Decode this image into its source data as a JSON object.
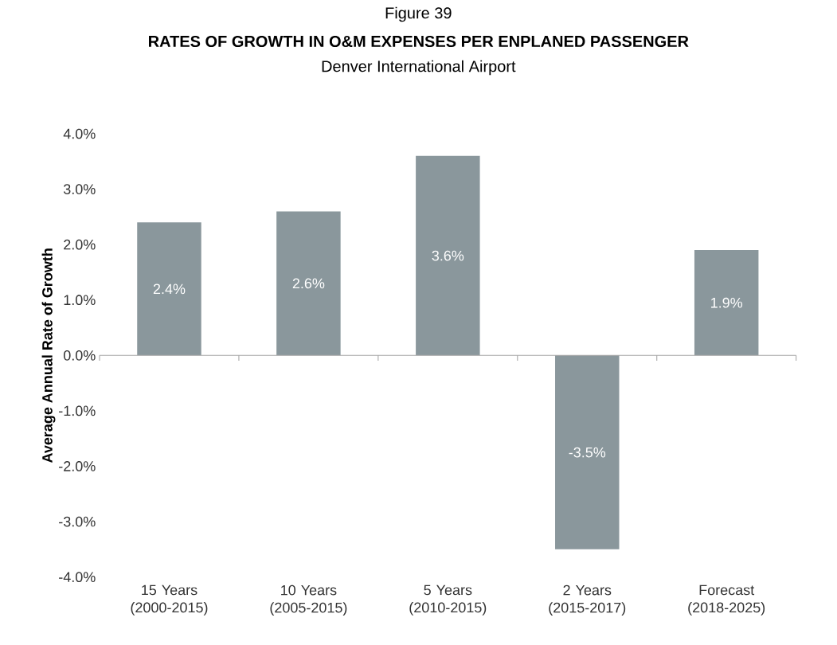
{
  "chart_data": {
    "type": "bar",
    "annotations": [
      "Figure 39"
    ],
    "title": "RATES OF GROWTH IN O&M EXPENSES PER ENPLANED PASSENGER",
    "subtitle": "Denver International Airport",
    "ylabel": "Average Annual Rate of Growth",
    "categories": [
      "15 Years (2000-2015)",
      "10 Years (2005-2015)",
      "5 Years (2010-2015)",
      "2 Years (2015-2017)",
      "Forecast (2018-2025)"
    ],
    "values": [
      2.4,
      2.6,
      3.6,
      -3.5,
      1.9
    ],
    "value_labels": [
      "2.4%",
      "2.6%",
      "3.6%",
      "-3.5%",
      "1.9%"
    ],
    "color": "#8a979c",
    "ylim": [
      -4,
      4
    ],
    "yticks": [
      {
        "value": -4,
        "label": "-4.0%"
      },
      {
        "value": -3,
        "label": "-3.0%"
      },
      {
        "value": -2,
        "label": "-2.0%"
      },
      {
        "value": -1,
        "label": "-1.0%"
      },
      {
        "value": 0,
        "label": "0.0%"
      },
      {
        "value": 1,
        "label": "1.0%"
      },
      {
        "value": 2,
        "label": "2.0%"
      },
      {
        "value": 3,
        "label": "3.0%"
      },
      {
        "value": 4,
        "label": "4.0%"
      }
    ]
  }
}
